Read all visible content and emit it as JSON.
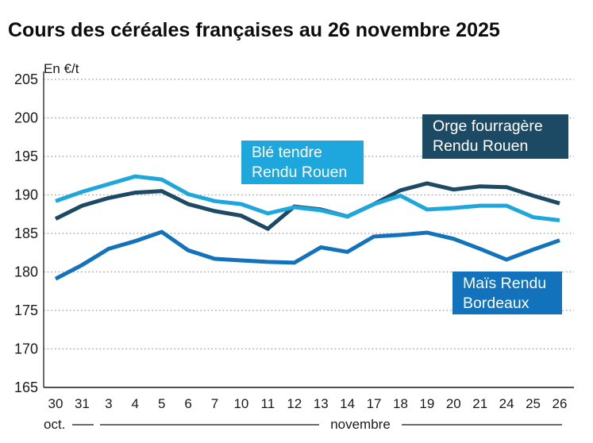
{
  "title": "Cours des céréales françaises au 26 novembre 2025",
  "chart_data": {
    "type": "line",
    "title": "Cours des céréales françaises au 26 novembre 2025",
    "y_axis_label": "En €/t",
    "ylim": [
      165,
      205
    ],
    "y_ticks": [
      "205",
      "200",
      "195",
      "190",
      "185",
      "180",
      "175",
      "170",
      "165"
    ],
    "y_tick_values": [
      205,
      200,
      195,
      190,
      185,
      180,
      175,
      170,
      165
    ],
    "grid": "horizontal dotted",
    "legend_position": "inline colored boxes",
    "x_axis": {
      "tick_labels": [
        "30",
        "31",
        "3",
        "4",
        "5",
        "6",
        "7",
        "10",
        "11",
        "12",
        "13",
        "14",
        "17",
        "18",
        "19",
        "20",
        "21",
        "24",
        "25",
        "26"
      ],
      "group_labels": [
        {
          "label": "oct.",
          "span": [
            0,
            1
          ]
        },
        {
          "label": "novembre",
          "span": [
            2,
            19
          ]
        }
      ]
    },
    "series": [
      {
        "name": "Maïs Rendu Bordeaux",
        "label_lines": [
          "Maïs Rendu",
          "Bordeaux"
        ],
        "color": "#1273BC",
        "values": [
          179.1,
          180.9,
          183.0,
          184.0,
          185.2,
          182.8,
          181.7,
          181.5,
          181.3,
          181.2,
          183.2,
          182.6,
          184.6,
          184.8,
          185.1,
          184.3,
          183.0,
          181.6,
          182.9,
          184.1
        ]
      },
      {
        "name": "Orge fourragère Rendu Rouen",
        "label_lines": [
          "Orge fourragère",
          "Rendu Rouen"
        ],
        "color": "#1C4A64",
        "values": [
          186.9,
          188.6,
          189.6,
          190.3,
          190.5,
          188.8,
          187.9,
          187.3,
          185.6,
          188.5,
          188.1,
          187.2,
          188.8,
          190.6,
          191.5,
          190.7,
          191.1,
          191.0,
          189.9,
          188.9
        ]
      },
      {
        "name": "Blé tendre Rendu Rouen",
        "label_lines": [
          "Blé tendre",
          "Rendu Rouen"
        ],
        "color": "#1DA7DC",
        "values": [
          189.2,
          190.4,
          191.4,
          192.4,
          192.0,
          190.1,
          189.2,
          188.8,
          187.6,
          188.4,
          188.0,
          187.2,
          188.8,
          189.9,
          188.1,
          188.3,
          188.6,
          188.6,
          187.1,
          186.7
        ]
      }
    ],
    "colors": {
      "ble_tendre": "#1DA7DC",
      "orge_fourragere": "#1C4A64",
      "mais": "#1273BC",
      "gridline": "#9a9a9a",
      "axis": "#3a3a3a",
      "tick_text": "#1a1a1a"
    }
  }
}
